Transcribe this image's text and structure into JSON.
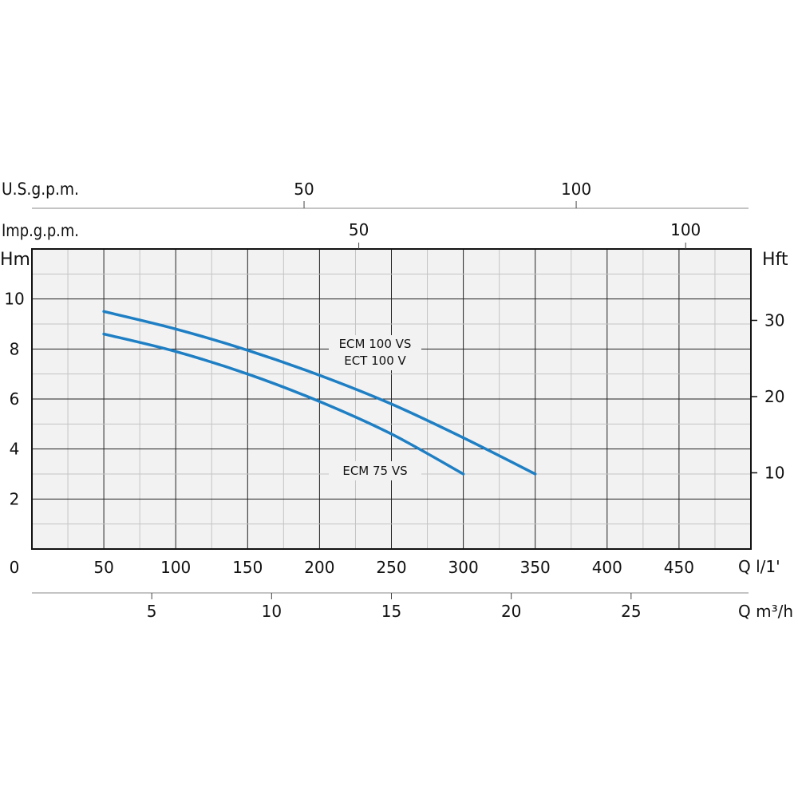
{
  "chart_data": {
    "type": "line",
    "x_unit": "Q l/1'",
    "xlim": [
      0,
      500
    ],
    "x_ticks": [
      0,
      50,
      100,
      150,
      200,
      250,
      300,
      350,
      400,
      450
    ],
    "y_left_unit": "Hm",
    "ylim": [
      0,
      12
    ],
    "y_left_ticks": [
      2,
      4,
      6,
      8,
      10
    ],
    "y_right_unit": "Hft",
    "y_right_ticks": [
      10,
      20,
      30
    ],
    "top_axis_usgpm": {
      "label": "U.S.g.p.m.",
      "ticks": [
        50,
        100
      ]
    },
    "top_axis_impgpm": {
      "label": "Imp.g.p.m.",
      "ticks": [
        50,
        100
      ]
    },
    "bottom_axis_m3h": {
      "label": "Q m³/h",
      "ticks": [
        5,
        10,
        15,
        20,
        25
      ]
    },
    "grid": true,
    "series": [
      {
        "name": "ECM 100 VS / ECT 100 V",
        "label_lines": [
          "ECM 100 VS",
          "ECT 100 V"
        ],
        "color": "#1e7fc4",
        "x": [
          50,
          100,
          150,
          200,
          250,
          300,
          350
        ],
        "y": [
          9.5,
          8.8,
          7.95,
          6.95,
          5.8,
          4.45,
          3.0
        ]
      },
      {
        "name": "ECM 75 VS",
        "label_lines": [
          "ECM 75 VS"
        ],
        "color": "#1e7fc4",
        "x": [
          50,
          100,
          150,
          200,
          250,
          300
        ],
        "y": [
          8.6,
          7.9,
          7.0,
          5.9,
          4.6,
          3.0
        ]
      }
    ]
  }
}
